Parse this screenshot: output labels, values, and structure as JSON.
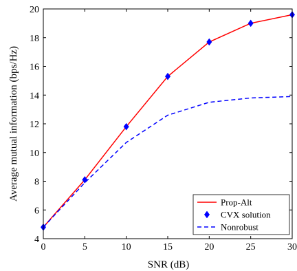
{
  "chart_data": {
    "type": "line",
    "title": "",
    "xlabel": "SNR (dB)",
    "ylabel": "Average mutual information (bps/Hz)",
    "xlim": [
      0,
      30
    ],
    "ylim": [
      4,
      20
    ],
    "xticks": [
      0,
      5,
      10,
      15,
      20,
      25,
      30
    ],
    "yticks": [
      4,
      6,
      8,
      10,
      12,
      14,
      16,
      18,
      20
    ],
    "grid": false,
    "legend_position": "bottom-right",
    "series": [
      {
        "name": "Prop-Alt",
        "color": "#ff0000",
        "style": "solid",
        "marker": "none",
        "x": [
          0,
          5,
          10,
          15,
          20,
          25,
          30
        ],
        "y": [
          4.8,
          8.1,
          11.8,
          15.3,
          17.7,
          19.0,
          19.6
        ]
      },
      {
        "name": "CVX solution",
        "color": "#0000ff",
        "style": "none",
        "marker": "diamond",
        "x": [
          0,
          5,
          10,
          15,
          20,
          25,
          30
        ],
        "y": [
          4.8,
          8.1,
          11.8,
          15.3,
          17.7,
          19.0,
          19.6
        ]
      },
      {
        "name": "Nonrobust",
        "color": "#0000ff",
        "style": "dashed",
        "marker": "none",
        "x": [
          0,
          5,
          10,
          15,
          20,
          25,
          30
        ],
        "y": [
          4.8,
          7.9,
          10.7,
          12.6,
          13.5,
          13.8,
          13.9
        ]
      }
    ]
  }
}
